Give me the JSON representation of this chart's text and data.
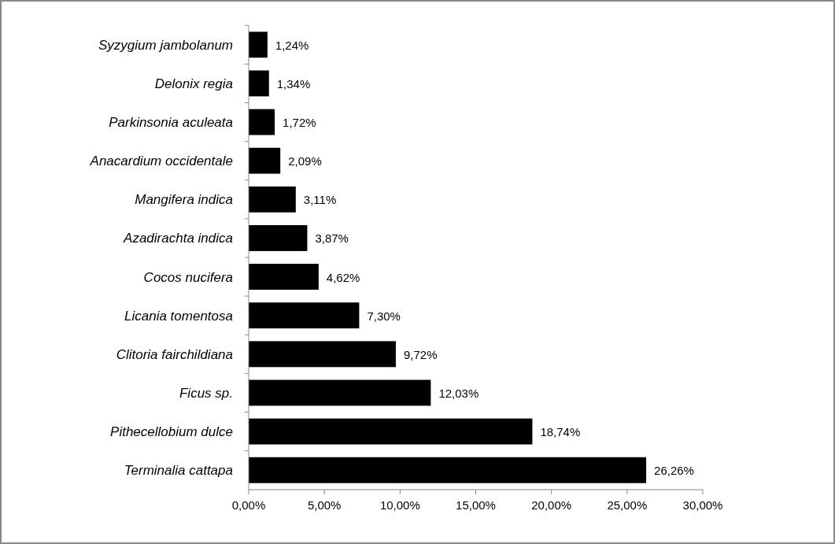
{
  "chart_data": {
    "type": "bar",
    "orientation": "horizontal",
    "categories": [
      "Syzygium jambolanum",
      "Delonix regia",
      "Parkinsonia aculeata",
      "Anacardium occidentale",
      "Mangifera indica",
      "Azadirachta indica",
      "Cocos nucifera",
      "Licania tomentosa",
      "Clitoria fairchildiana",
      "Ficus sp.",
      "Pithecellobium dulce",
      "Terminalia cattapa"
    ],
    "values": [
      1.24,
      1.34,
      1.72,
      2.09,
      3.11,
      3.87,
      4.62,
      7.3,
      9.72,
      12.03,
      18.74,
      26.26
    ],
    "value_labels": [
      "1,24%",
      "1,34%",
      "1,72%",
      "2,09%",
      "3,11%",
      "3,87%",
      "4,62%",
      "7,30%",
      "9,72%",
      "12,03%",
      "18,74%",
      "26,26%"
    ],
    "color": "#000000",
    "xlim": [
      0,
      30
    ],
    "xticks": [
      {
        "value": 0,
        "label": "0,00%"
      },
      {
        "value": 5,
        "label": "5,00%"
      },
      {
        "value": 10,
        "label": "10,00%"
      },
      {
        "value": 15,
        "label": "15,00%"
      },
      {
        "value": 20,
        "label": "20,00%"
      },
      {
        "value": 25,
        "label": "25,00%"
      },
      {
        "value": 30,
        "label": "30,00%"
      }
    ],
    "grid": false
  }
}
